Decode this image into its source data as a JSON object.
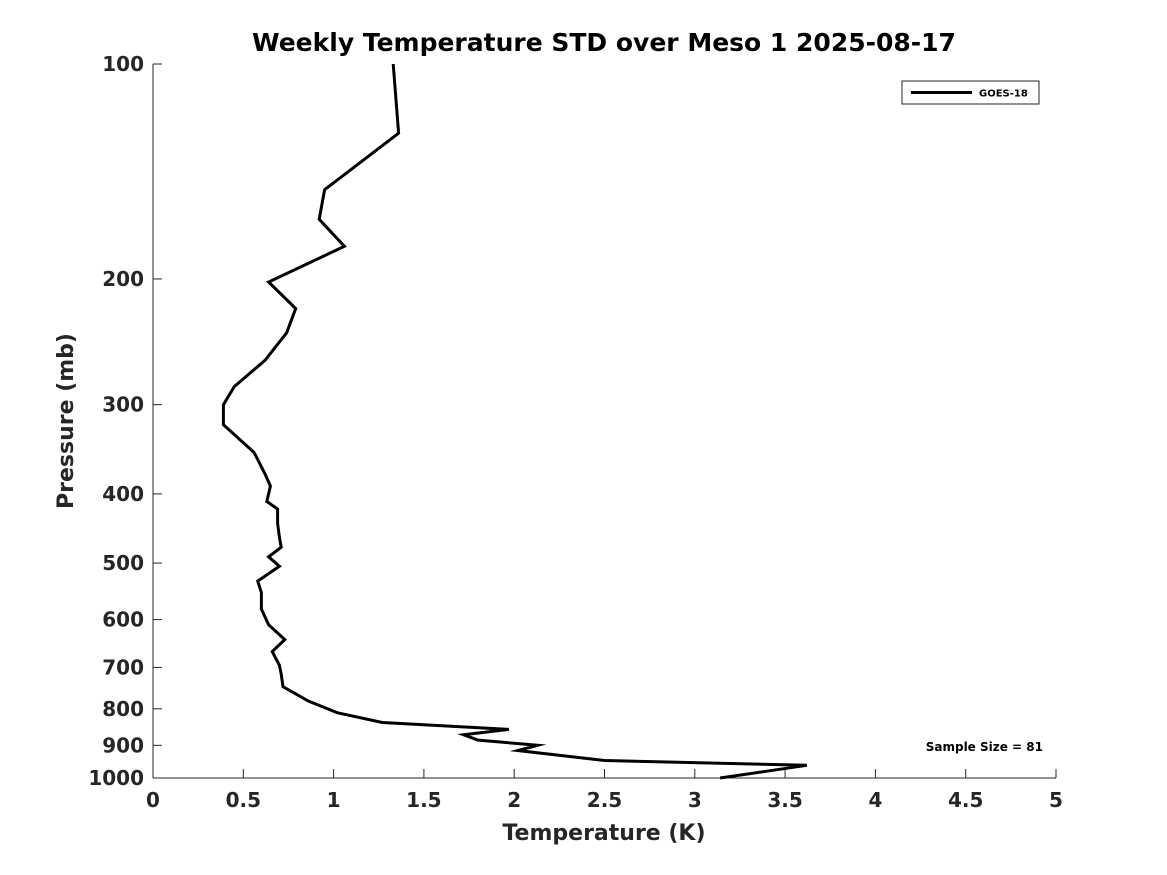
{
  "chart_data": {
    "type": "line",
    "title": "Weekly Temperature STD over Meso 1 2025-08-17",
    "xlabel": "Temperature (K)",
    "ylabel": "Pressure (mb)",
    "xlim": [
      0,
      5
    ],
    "ylim": [
      100,
      1000
    ],
    "yscale": "log",
    "reverse_y": true,
    "xticks": [
      0,
      0.5,
      1,
      1.5,
      2,
      2.5,
      3,
      3.5,
      4,
      4.5,
      5
    ],
    "xtick_labels": [
      "0",
      "0.5",
      "1",
      "1.5",
      "2",
      "2.5",
      "3",
      "3.5",
      "4",
      "4.5",
      "5"
    ],
    "yticks": [
      100,
      200,
      300,
      400,
      500,
      600,
      700,
      800,
      900,
      1000
    ],
    "ytick_labels": [
      "100",
      "200",
      "300",
      "400",
      "500",
      "600",
      "700",
      "800",
      "900",
      "1000"
    ],
    "grid": false,
    "legend_position": "top-right",
    "annotation": "Sample Size = 81",
    "series": [
      {
        "name": "GOES-18",
        "color": "#000000",
        "points": [
          [
            1.33,
            100
          ],
          [
            1.36,
            125
          ],
          [
            0.95,
            150
          ],
          [
            0.92,
            165
          ],
          [
            1.06,
            180
          ],
          [
            0.64,
            202
          ],
          [
            0.79,
            220
          ],
          [
            0.74,
            238
          ],
          [
            0.62,
            260
          ],
          [
            0.45,
            283
          ],
          [
            0.39,
            300
          ],
          [
            0.39,
            320
          ],
          [
            0.56,
            350
          ],
          [
            0.62,
            375
          ],
          [
            0.65,
            390
          ],
          [
            0.63,
            410
          ],
          [
            0.69,
            420
          ],
          [
            0.69,
            440
          ],
          [
            0.7,
            460
          ],
          [
            0.71,
            475
          ],
          [
            0.64,
            490
          ],
          [
            0.7,
            505
          ],
          [
            0.58,
            530
          ],
          [
            0.6,
            550
          ],
          [
            0.6,
            580
          ],
          [
            0.64,
            610
          ],
          [
            0.73,
            640
          ],
          [
            0.66,
            665
          ],
          [
            0.7,
            695
          ],
          [
            0.71,
            715
          ],
          [
            0.72,
            745
          ],
          [
            0.86,
            780
          ],
          [
            1.02,
            810
          ],
          [
            1.27,
            836
          ],
          [
            1.97,
            855
          ],
          [
            1.72,
            870
          ],
          [
            1.8,
            885
          ],
          [
            2.13,
            900
          ],
          [
            2.02,
            915
          ],
          [
            2.5,
            945
          ],
          [
            3.62,
            960
          ],
          [
            3.38,
            980
          ],
          [
            3.14,
            1000
          ]
        ]
      }
    ]
  }
}
